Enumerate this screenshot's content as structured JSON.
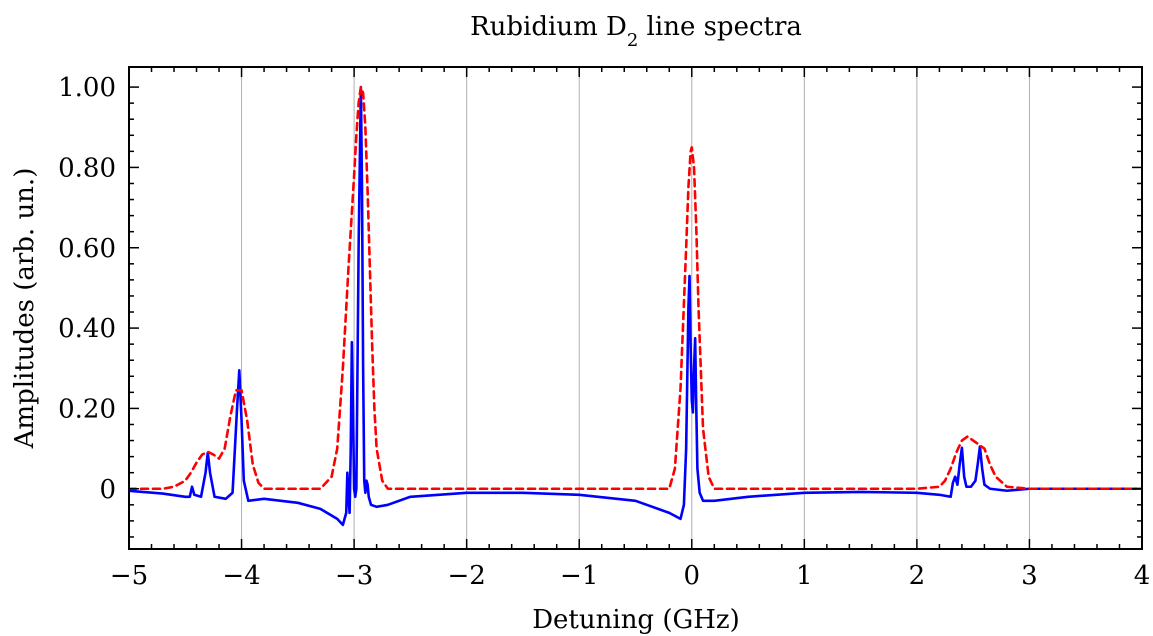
{
  "chart_data": {
    "type": "line",
    "title": "Rubidium D",
    "title_subscript": "2",
    "title_suffix": " line spectra",
    "xlabel": "Detuning (GHz)",
    "ylabel": "Amplitudes (arb. un.)",
    "xlim": [
      -5,
      4
    ],
    "ylim": [
      -0.15,
      1.05
    ],
    "xticks": [
      -5,
      -4,
      -3,
      -2,
      -1,
      0,
      1,
      2,
      3,
      4
    ],
    "xtick_labels": [
      "−5",
      "−4",
      "−3",
      "−2",
      "−1",
      "0",
      "1",
      "2",
      "3",
      "4"
    ],
    "yticks": [
      0,
      0.2,
      0.4,
      0.6,
      0.8,
      1.0
    ],
    "ytick_labels": [
      "0",
      "0.20",
      "0.40",
      "0.60",
      "0.80",
      "1.00"
    ],
    "grid": "vertical",
    "series": [
      {
        "color": "#0000ff",
        "style": "solid",
        "x": [
          -5.0,
          -4.7,
          -4.5,
          -4.46,
          -4.44,
          -4.42,
          -4.36,
          -4.32,
          -4.3,
          -4.28,
          -4.24,
          -4.14,
          -4.08,
          -4.04,
          -4.02,
          -4.0,
          -3.98,
          -3.94,
          -3.8,
          -3.5,
          -3.3,
          -3.15,
          -3.1,
          -3.07,
          -3.06,
          -3.05,
          -3.04,
          -3.03,
          -3.02,
          -3.01,
          -3.0,
          -2.99,
          -2.98,
          -2.96,
          -2.94,
          -2.93,
          -2.92,
          -2.91,
          -2.9,
          -2.89,
          -2.88,
          -2.87,
          -2.85,
          -2.8,
          -2.7,
          -2.5,
          -2.0,
          -1.5,
          -1.0,
          -0.5,
          -0.2,
          -0.1,
          -0.07,
          -0.05,
          -0.03,
          -0.02,
          -0.01,
          0.0,
          0.01,
          0.02,
          0.03,
          0.04,
          0.05,
          0.07,
          0.1,
          0.2,
          0.5,
          1.0,
          1.5,
          2.0,
          2.2,
          2.3,
          2.32,
          2.34,
          2.36,
          2.38,
          2.4,
          2.42,
          2.44,
          2.48,
          2.52,
          2.54,
          2.56,
          2.58,
          2.6,
          2.65,
          2.8,
          3.0,
          3.5,
          4.0
        ],
        "y": [
          -0.005,
          -0.012,
          -0.02,
          -0.02,
          0.005,
          -0.015,
          -0.02,
          0.04,
          0.09,
          0.04,
          -0.02,
          -0.025,
          -0.01,
          0.2,
          0.295,
          0.17,
          0.02,
          -0.03,
          -0.025,
          -0.035,
          -0.05,
          -0.075,
          -0.09,
          -0.06,
          0.04,
          -0.02,
          -0.06,
          0.1,
          0.365,
          0.2,
          0.0,
          -0.02,
          0.0,
          0.6,
          1.0,
          0.75,
          0.3,
          0.02,
          -0.01,
          0.02,
          0.01,
          -0.02,
          -0.04,
          -0.045,
          -0.04,
          -0.02,
          -0.01,
          -0.01,
          -0.015,
          -0.03,
          -0.06,
          -0.075,
          -0.04,
          0.1,
          0.45,
          0.53,
          0.35,
          0.22,
          0.19,
          0.3,
          0.375,
          0.2,
          0.05,
          -0.01,
          -0.03,
          -0.03,
          -0.02,
          -0.01,
          -0.008,
          -0.01,
          -0.015,
          -0.02,
          0.015,
          0.03,
          0.01,
          0.06,
          0.102,
          0.03,
          0.005,
          0.005,
          0.02,
          0.06,
          0.105,
          0.05,
          0.01,
          0.0,
          -0.005,
          0.0,
          0.0,
          0.0
        ]
      },
      {
        "color": "#ff0000",
        "style": "dashed",
        "x": [
          -5.0,
          -4.7,
          -4.6,
          -4.5,
          -4.45,
          -4.4,
          -4.35,
          -4.3,
          -4.25,
          -4.2,
          -4.15,
          -4.1,
          -4.05,
          -4.0,
          -3.95,
          -3.9,
          -3.85,
          -3.8,
          -3.7,
          -3.3,
          -3.2,
          -3.15,
          -3.1,
          -3.05,
          -3.0,
          -2.98,
          -2.96,
          -2.94,
          -2.92,
          -2.9,
          -2.88,
          -2.86,
          -2.84,
          -2.82,
          -2.8,
          -2.75,
          -2.7,
          -2.6,
          -2.0,
          -1.0,
          -0.2,
          -0.15,
          -0.1,
          -0.05,
          -0.03,
          -0.01,
          0.0,
          0.02,
          0.04,
          0.06,
          0.1,
          0.15,
          0.2,
          0.3,
          1.0,
          2.0,
          2.2,
          2.25,
          2.3,
          2.35,
          2.4,
          2.45,
          2.5,
          2.55,
          2.6,
          2.65,
          2.7,
          2.8,
          3.0,
          4.0
        ],
        "y": [
          0.0,
          0.0,
          0.005,
          0.02,
          0.04,
          0.065,
          0.085,
          0.092,
          0.085,
          0.075,
          0.1,
          0.18,
          0.245,
          0.245,
          0.17,
          0.06,
          0.015,
          0.0,
          0.0,
          0.0,
          0.03,
          0.1,
          0.3,
          0.55,
          0.78,
          0.88,
          0.96,
          1.0,
          0.985,
          0.9,
          0.74,
          0.55,
          0.36,
          0.2,
          0.1,
          0.02,
          0.0,
          0.0,
          0.0,
          0.0,
          0.0,
          0.05,
          0.25,
          0.6,
          0.75,
          0.84,
          0.85,
          0.8,
          0.65,
          0.45,
          0.15,
          0.03,
          0.0,
          0.0,
          0.0,
          0.0,
          0.005,
          0.02,
          0.05,
          0.09,
          0.12,
          0.13,
          0.12,
          0.11,
          0.1,
          0.06,
          0.03,
          0.005,
          0.0,
          0.0
        ]
      }
    ]
  }
}
